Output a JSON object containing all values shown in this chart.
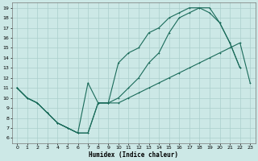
{
  "xlabel": "Humidex (Indice chaleur)",
  "bg_color": "#cce8e6",
  "grid_color": "#aacfcc",
  "line_color": "#1a6b5a",
  "xlim": [
    -0.5,
    23.5
  ],
  "ylim": [
    5.5,
    19.5
  ],
  "xticks": [
    0,
    1,
    2,
    3,
    4,
    5,
    6,
    7,
    8,
    9,
    10,
    11,
    12,
    13,
    14,
    15,
    16,
    17,
    18,
    19,
    20,
    21,
    22,
    23
  ],
  "yticks": [
    6,
    7,
    8,
    9,
    10,
    11,
    12,
    13,
    14,
    15,
    16,
    17,
    18,
    19
  ],
  "line1_x": [
    0,
    1,
    2,
    3,
    4,
    5,
    6,
    7,
    8,
    9,
    10,
    11,
    12,
    13,
    14,
    15,
    16,
    17,
    18,
    19,
    20,
    21,
    22,
    23
  ],
  "line1_y": [
    11,
    10,
    9.5,
    8.5,
    7.5,
    7,
    6.5,
    6.5,
    9.5,
    9.5,
    9.5,
    10,
    10.5,
    11,
    11.5,
    12,
    12.5,
    13,
    13.5,
    14,
    14.5,
    15,
    15.5,
    11.5
  ],
  "line2_x": [
    0,
    1,
    2,
    3,
    4,
    5,
    6,
    7,
    8,
    9,
    10,
    11,
    12,
    13,
    14,
    15,
    16,
    17,
    18,
    19,
    20,
    21,
    22
  ],
  "line2_y": [
    11,
    10,
    9.5,
    8.5,
    7.5,
    7,
    6.5,
    11.5,
    9.5,
    9.5,
    13.5,
    14.5,
    15,
    16.5,
    17,
    18,
    18.5,
    19,
    19,
    18.5,
    17.5,
    15.5,
    13
  ],
  "line3_x": [
    0,
    1,
    2,
    3,
    4,
    5,
    6,
    7,
    8,
    9,
    10,
    11,
    12,
    13,
    14,
    15,
    16,
    17,
    18,
    19,
    20,
    21,
    22
  ],
  "line3_y": [
    11,
    10,
    9.5,
    8.5,
    7.5,
    7,
    6.5,
    6.5,
    9.5,
    9.5,
    10,
    11,
    12,
    13.5,
    14.5,
    16.5,
    18,
    18.5,
    19,
    19,
    17.5,
    15.5,
    13
  ]
}
